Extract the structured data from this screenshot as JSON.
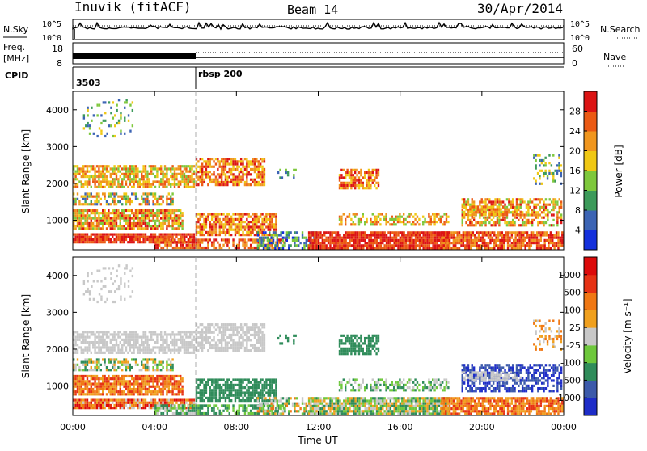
{
  "header": {
    "station": "Inuvik (fitACF)",
    "beam": "Beam 14",
    "date": "30/Apr/2014"
  },
  "summary_panels": {
    "nsky_label": "N.Sky",
    "nsearch_label": "N.Search",
    "noise_ticks": [
      "10^5",
      "10^0"
    ],
    "freq_label_1": "Freq.",
    "freq_label_2": "[MHz]",
    "freq_ticks": [
      "18",
      "8"
    ],
    "nave_label": "Nave",
    "nave_ticks": [
      "60",
      "0"
    ],
    "cpid_label": "CPID",
    "cpid_segments": [
      {
        "name": "3503",
        "start_hour": 0,
        "end_hour": 6.0
      },
      {
        "name": "rbsp 200",
        "start_hour": 6.0,
        "end_hour": 24
      }
    ]
  },
  "chart_data": [
    {
      "type": "heatmap",
      "title": "",
      "ylabel": "Slant Range [km]",
      "xlabel": "Time UT",
      "ylim": [
        200,
        4500
      ],
      "xlim": [
        0,
        24
      ],
      "yticks": [
        "1000",
        "2000",
        "3000",
        "4000"
      ],
      "xticks": [
        "00:00",
        "04:00",
        "08:00",
        "12:00",
        "16:00",
        "20:00",
        "00:00"
      ],
      "colorbar": {
        "label": "Power [dB]",
        "ticks": [
          "4",
          "8",
          "12",
          "16",
          "20",
          "24",
          "28"
        ],
        "colors": [
          "#1430dc",
          "#3c64b4",
          "#3c9a5a",
          "#7ec83c",
          "#f0c814",
          "#f0961e",
          "#eb5a14",
          "#dc1414"
        ]
      }
    },
    {
      "type": "heatmap",
      "title": "",
      "ylabel": "Slant Range [km]",
      "xlabel": "Time UT",
      "ylim": [
        200,
        4500
      ],
      "xlim": [
        0,
        24
      ],
      "yticks": [
        "1000",
        "2000",
        "3000",
        "4000"
      ],
      "xticks": [
        "00:00",
        "04:00",
        "08:00",
        "12:00",
        "16:00",
        "20:00",
        "00:00"
      ],
      "colorbar": {
        "label": "Velocity [m s⁻¹]",
        "ticks": [
          "1000",
          "500",
          "100",
          "25",
          "-25",
          "-100",
          "-500",
          "-1000"
        ],
        "colors": [
          "#1e2dc8",
          "#3c5aaa",
          "#2f8c5a",
          "#6ec83c",
          "#c8c8c8",
          "#f0a01e",
          "#f07814",
          "#e63214",
          "#dc0a0a"
        ]
      }
    }
  ]
}
